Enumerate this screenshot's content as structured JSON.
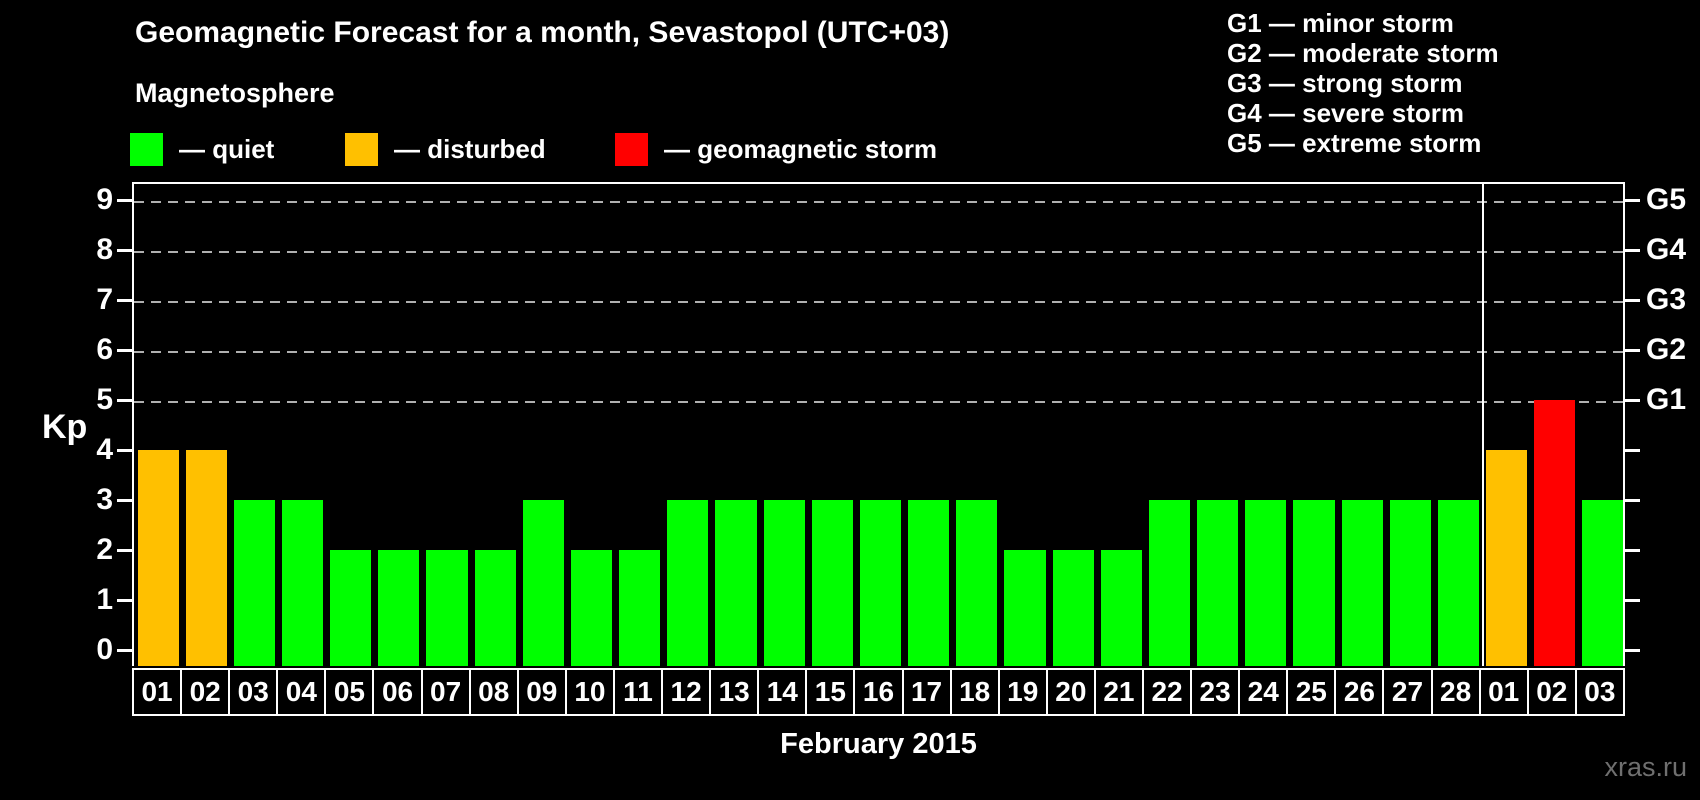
{
  "header": {
    "title": "Geomagnetic Forecast for a month, Sevastopol (UTC+03)",
    "subtitle": "Magnetosphere"
  },
  "legend": {
    "items": [
      {
        "key": "quiet",
        "color": "#00FF00",
        "label": "— quiet"
      },
      {
        "key": "disturbed",
        "color": "#FFC000",
        "label": "— disturbed"
      },
      {
        "key": "storm",
        "color": "#FF0000",
        "label": "— geomagnetic storm"
      }
    ]
  },
  "storm_scale_legend": {
    "items": [
      "G1 — minor storm",
      "G2 — moderate storm",
      "G3 — strong storm",
      "G4 — severe storm",
      "G5 — extreme storm"
    ]
  },
  "status_colors": {
    "quiet": "#00FF00",
    "disturbed": "#FFC000",
    "storm": "#FF0000"
  },
  "chart_data": {
    "type": "bar",
    "title": "Geomagnetic Forecast for a month, Sevastopol (UTC+03)",
    "ylabel": "Kp",
    "xlabel": "February 2015",
    "ylim": [
      0,
      9
    ],
    "yticks": [
      0,
      1,
      2,
      3,
      4,
      5,
      6,
      7,
      8,
      9
    ],
    "gridlines_at": [
      5,
      6,
      7,
      8,
      9
    ],
    "grid": "dashed horizontal, levels 5-9 only",
    "legend_position": "top",
    "right_axis_labels": [
      {
        "value": 5,
        "label": "G1"
      },
      {
        "value": 6,
        "label": "G2"
      },
      {
        "value": 7,
        "label": "G3"
      },
      {
        "value": 8,
        "label": "G4"
      },
      {
        "value": 9,
        "label": "G5"
      }
    ],
    "categories": [
      "01",
      "02",
      "03",
      "04",
      "05",
      "06",
      "07",
      "08",
      "09",
      "10",
      "11",
      "12",
      "13",
      "14",
      "15",
      "16",
      "17",
      "18",
      "19",
      "20",
      "21",
      "22",
      "23",
      "24",
      "25",
      "26",
      "27",
      "28",
      "01",
      "02",
      "03"
    ],
    "month_boundary_after_index": 27,
    "series": [
      {
        "name": "Kp forecast",
        "values": [
          4,
          4,
          3,
          3,
          2,
          2,
          2,
          2,
          3,
          2,
          2,
          3,
          3,
          3,
          3,
          3,
          3,
          3,
          2,
          2,
          2,
          3,
          3,
          3,
          3,
          3,
          3,
          3,
          4,
          5,
          3
        ],
        "statuses": [
          "disturbed",
          "disturbed",
          "quiet",
          "quiet",
          "quiet",
          "quiet",
          "quiet",
          "quiet",
          "quiet",
          "quiet",
          "quiet",
          "quiet",
          "quiet",
          "quiet",
          "quiet",
          "quiet",
          "quiet",
          "quiet",
          "quiet",
          "quiet",
          "quiet",
          "quiet",
          "quiet",
          "quiet",
          "quiet",
          "quiet",
          "quiet",
          "quiet",
          "disturbed",
          "storm",
          "quiet"
        ]
      }
    ]
  },
  "footer": {
    "caption": "February 2015",
    "watermark": "xras.ru"
  }
}
